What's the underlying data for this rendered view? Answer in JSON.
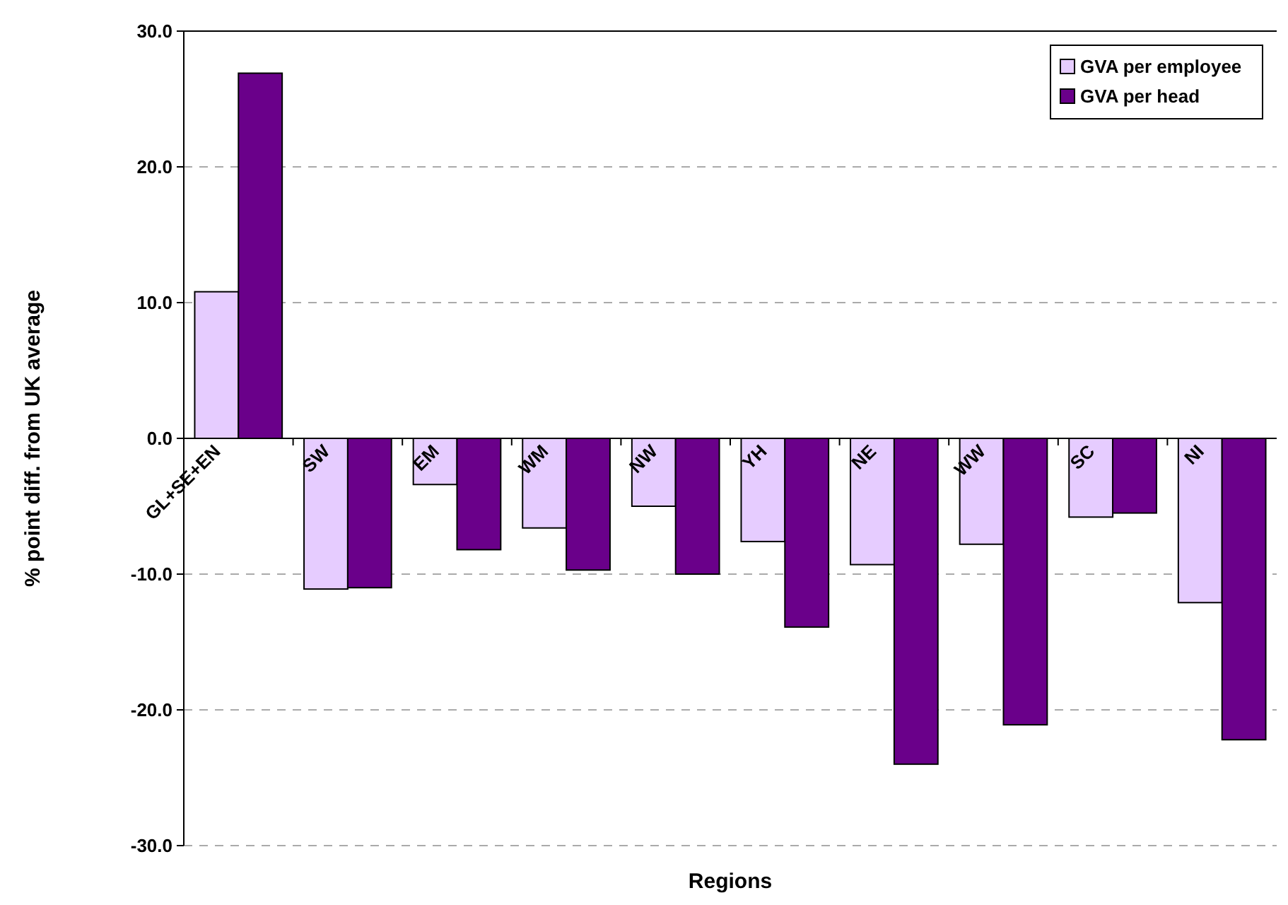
{
  "chart_data": {
    "type": "bar",
    "xlabel": "Regions",
    "ylabel": "% point diff. from UK average",
    "categories": [
      "GL+SE+EN",
      "SW",
      "EM",
      "WM",
      "NW",
      "YH",
      "NE",
      "WW",
      "SC",
      "NI"
    ],
    "series": [
      {
        "name": "GVA per employee",
        "color": "#e6ccff",
        "values": [
          10.8,
          -11.1,
          -3.4,
          -6.6,
          -5.0,
          -7.6,
          -9.3,
          -7.8,
          -5.8,
          -12.1
        ]
      },
      {
        "name": "GVA per head",
        "color": "#6a008a",
        "values": [
          26.9,
          -11.0,
          -8.2,
          -9.7,
          -10.0,
          -13.9,
          -24.0,
          -21.1,
          -5.5,
          -22.2
        ]
      }
    ],
    "ylim": [
      -30,
      30
    ],
    "yticks": [
      {
        "value": -30,
        "label": "-30.0"
      },
      {
        "value": -20,
        "label": "-20.0"
      },
      {
        "value": -10,
        "label": "-10.0"
      },
      {
        "value": 0,
        "label": "0.0"
      },
      {
        "value": 10,
        "label": "10.0"
      },
      {
        "value": 20,
        "label": "20.0"
      },
      {
        "value": 30,
        "label": "30.0"
      }
    ],
    "grid": "y",
    "legend": "top right"
  }
}
